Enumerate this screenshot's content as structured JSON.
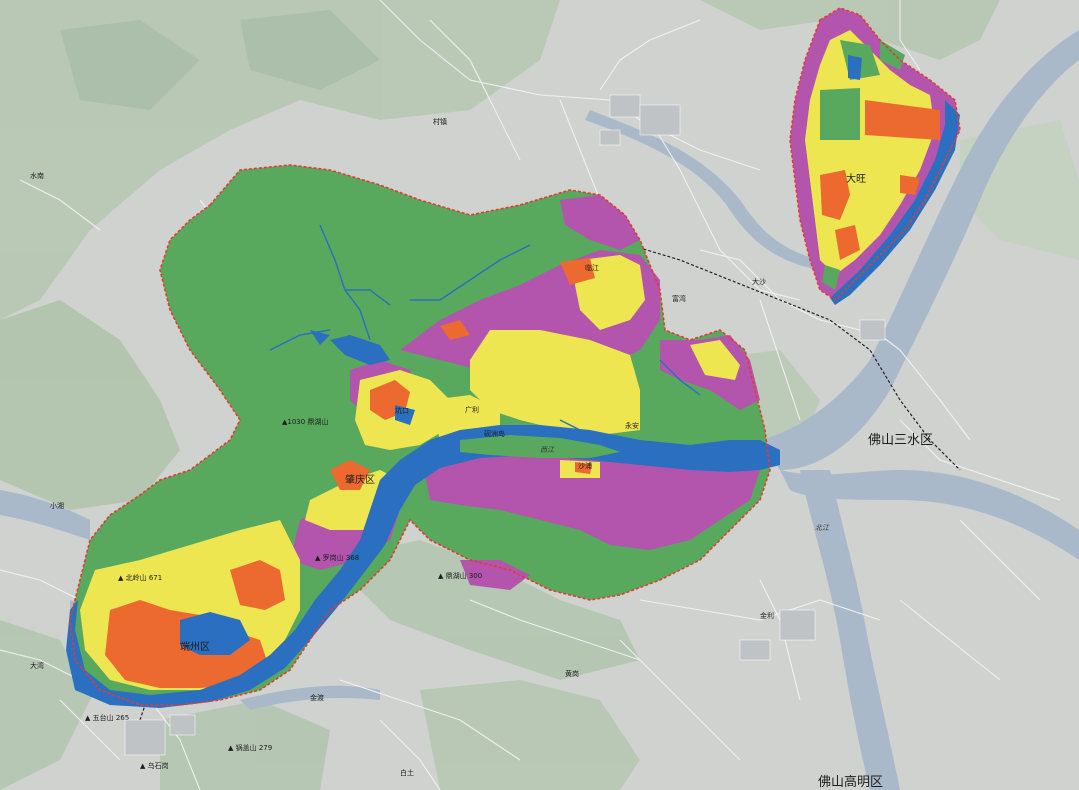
{
  "colors": {
    "background": "#cfd2cf",
    "hills": "#b3c6b0",
    "hills_dark": "#a4bba2",
    "water": "#a9b9c9",
    "road": "#ffffff",
    "green": "#58a85e",
    "purple": "#b355ad",
    "yellow": "#ede650",
    "orange": "#ec6a2f",
    "blue": "#2a6fc0",
    "boundary": "#e53a32"
  },
  "labels": {
    "sanshui": "佛山三水区",
    "gaoming": "佛山高明区",
    "dawang": "大旺",
    "zhaoqing": "肇庆区",
    "duanzhou": "端州区",
    "guangli": "广利",
    "shaju": "沙浦",
    "yongan": "永安",
    "kengkou": "坑口",
    "shuinan": "水南",
    "cunzhen": "村镇",
    "hedong": "河北",
    "dasha": "大沙",
    "fuwan": "富湾",
    "jintan": "金渡",
    "lingong": "临江",
    "dawan": "大湾",
    "xiaoxiang": "小湘",
    "baitu": "白土",
    "jinli": "金利",
    "huangcun": "黄岗",
    "lianhua": "莲花",
    "peak1": "▲1030 鼎湖山",
    "peak2": "▲ 锅盖山 279",
    "peak3": "▲ 北岭山 671",
    "peak4": "▲ 五台山 265",
    "peak5": "▲ 罗岗山 368",
    "peak6": "▲ 鼎湖山 300",
    "peak7": "▲ 乌石岗",
    "river1": "西江",
    "river2": "北江",
    "jiangzhou": "砚洲岛"
  }
}
